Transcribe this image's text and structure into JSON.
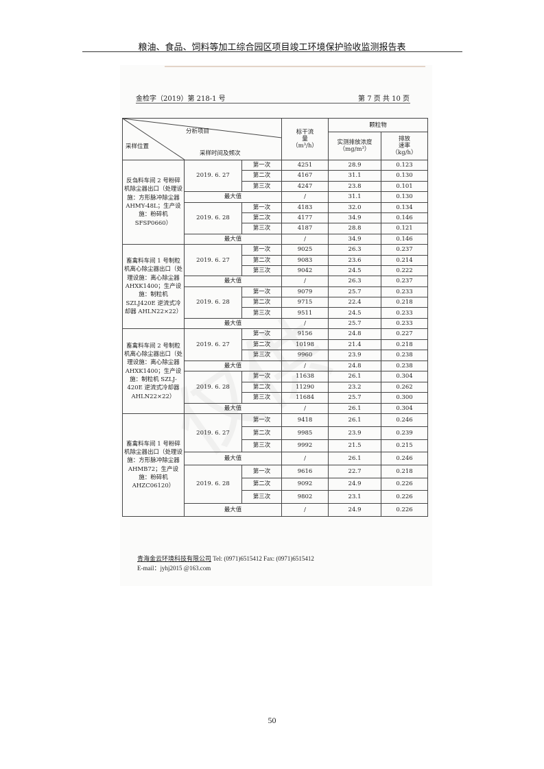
{
  "doc_title": "粮油、食品、饲料等加工综合园区项目竣工环境保护验收监测报告表",
  "report_no": "金检字（2019）第 218-1 号",
  "page_info": "第 7 页 共 10 页",
  "table": {
    "header": {
      "analysis_item": "分析项目",
      "sampling_location": "采样位置",
      "sampling_time": "采样时间及频次",
      "flow": "标干流量",
      "flow_unit": "（m³/h）",
      "pollutant": "颗粒物",
      "concentration": "实测排放浓度",
      "concentration_unit": "（mg/m³）",
      "rate": "排放速率",
      "rate_unit": "（kg/h）"
    },
    "max_label": "最大值",
    "groups": [
      {
        "location": "反刍料车间 2 号粉碎机除尘器出口（处理设施：方形脉冲除尘器 AHMY-48L；生产设施：粉碎机 SFSP0660）",
        "days": [
          {
            "date": "2019. 6. 27",
            "rows": [
              [
                "第一次",
                "4251",
                "28.9",
                "0.123"
              ],
              [
                "第二次",
                "4167",
                "31.1",
                "0.130"
              ],
              [
                "第三次",
                "4247",
                "23.8",
                "0.101"
              ]
            ],
            "max": [
              "/",
              "31.1",
              "0.130"
            ]
          },
          {
            "date": "2019. 6. 28",
            "rows": [
              [
                "第一次",
                "4183",
                "32.0",
                "0.134"
              ],
              [
                "第二次",
                "4177",
                "34.9",
                "0.146"
              ],
              [
                "第三次",
                "4187",
                "28.8",
                "0.121"
              ]
            ],
            "max": [
              "/",
              "34.9",
              "0.146"
            ]
          }
        ]
      },
      {
        "location": "畜禽料车间 1 号制粒机离心除尘器出口（处理设施：离心除尘器 AHXK1400；生产设施：制粒机 SZLJ420E 逆流式冷却器 AHLN22×22）",
        "days": [
          {
            "date": "2019. 6. 27",
            "rows": [
              [
                "第一次",
                "9025",
                "26.3",
                "0.237"
              ],
              [
                "第二次",
                "9083",
                "23.6",
                "0.214"
              ],
              [
                "第三次",
                "9042",
                "24.5",
                "0.222"
              ]
            ],
            "max": [
              "/",
              "26.3",
              "0.237"
            ]
          },
          {
            "date": "2019. 6. 28",
            "rows": [
              [
                "第一次",
                "9079",
                "25.7",
                "0.233"
              ],
              [
                "第二次",
                "9715",
                "22.4",
                "0.218"
              ],
              [
                "第三次",
                "9511",
                "24.5",
                "0.233"
              ]
            ],
            "max": [
              "/",
              "25.7",
              "0.233"
            ]
          }
        ]
      },
      {
        "location": "畜禽料车间 2 号制粒机离心除尘器出口（处理设施：离心除尘器 AHXK1400；生产设施：制粒机 SZLJ-420E 逆流式冷却器 AHLN22×22）",
        "days": [
          {
            "date": "2019. 6. 27",
            "rows": [
              [
                "第一次",
                "9156",
                "24.8",
                "0.227"
              ],
              [
                "第二次",
                "10198",
                "21.4",
                "0.218"
              ],
              [
                "第三次",
                "9960",
                "23.9",
                "0.238"
              ]
            ],
            "max": [
              "/",
              "24.8",
              "0.238"
            ]
          },
          {
            "date": "2019. 6. 28",
            "rows": [
              [
                "第一次",
                "11638",
                "26.1",
                "0.304"
              ],
              [
                "第二次",
                "11290",
                "23.2",
                "0.262"
              ],
              [
                "第三次",
                "11684",
                "25.7",
                "0.300"
              ]
            ],
            "max": [
              "/",
              "26.1",
              "0.304"
            ]
          }
        ]
      },
      {
        "location": "畜禽料车间 1 号粉碎机除尘器出口（处理设施：方形脉冲除尘器 AHMB72；生产设施：粉碎机 AHZC06120）",
        "days": [
          {
            "date": "2019. 6. 27",
            "rows": [
              [
                "第一次",
                "9418",
                "26.1",
                "0.246"
              ],
              [
                "第二次",
                "9985",
                "23.9",
                "0.239"
              ],
              [
                "第三次",
                "9992",
                "21.5",
                "0.215"
              ]
            ],
            "max": [
              "/",
              "26.1",
              "0.246"
            ]
          },
          {
            "date": "2019. 6. 28",
            "rows": [
              [
                "第一次",
                "9616",
                "22.7",
                "0.218"
              ],
              [
                "第二次",
                "9092",
                "24.9",
                "0.226"
              ],
              [
                "第三次",
                "9802",
                "23.1",
                "0.226"
              ]
            ],
            "max": [
              "/",
              "24.9",
              "0.226"
            ]
          }
        ]
      }
    ]
  },
  "footer": {
    "company": "青海金云环境科技有限公司",
    "tel": "Tel:   (0971)6515412    Fax:   (0971)6515412",
    "email": "E-mail：jyhj2015 @163.com"
  },
  "page_number": "50"
}
